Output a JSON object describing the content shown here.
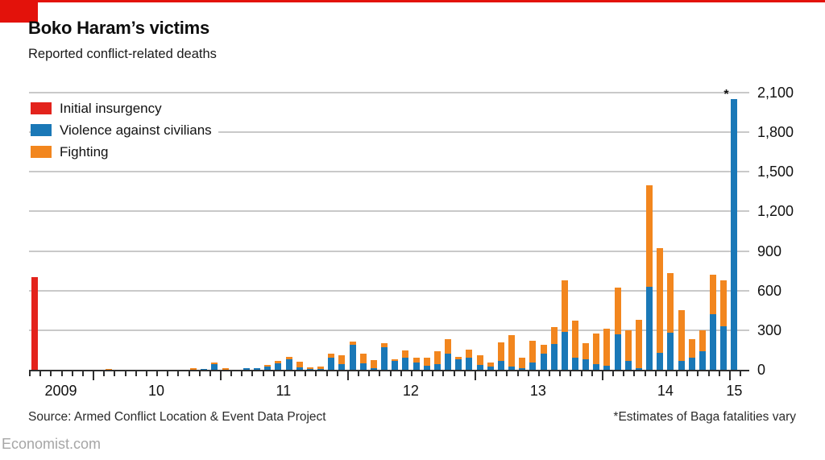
{
  "page": {
    "title": "Boko Haram’s victims",
    "subtitle": "Reported conflict-related deaths",
    "source": "Source: Armed Conflict Location & Event Data Project",
    "footnote": "*Estimates of Baga fatalities vary",
    "site": "Economist.com"
  },
  "colors": {
    "brand_red": "#e3120b",
    "initial": "#e3231c",
    "civilians": "#1a78b7",
    "fighting": "#f2861e",
    "grid": "#c9c9c9",
    "axis": "#2e2e2e"
  },
  "legend": {
    "items": [
      {
        "label": "Initial insurgency",
        "color_key": "initial"
      },
      {
        "label": "Violence against civilians",
        "color_key": "civilians"
      },
      {
        "label": "Fighting",
        "color_key": "fighting"
      }
    ]
  },
  "chart_data": {
    "type": "bar",
    "subtype": "stacked-monthly",
    "title": "Boko Haram’s victims",
    "ylabel": "Reported conflict-related deaths",
    "ylim": [
      0,
      2100
    ],
    "yticks": [
      0,
      300,
      600,
      900,
      1200,
      1500,
      1800,
      2100
    ],
    "ytick_labels": [
      "0",
      "300",
      "600",
      "900",
      "1,200",
      "1,500",
      "1,800",
      "2,100"
    ],
    "x_year_labels": [
      "2009",
      "10",
      "11",
      "12",
      "13",
      "14",
      "15"
    ],
    "legend_position": "top-left",
    "grid": "horizontal",
    "note": {
      "marker": "*",
      "month": "2015-01",
      "text": "*Estimates of Baga fatalities vary"
    },
    "months": [
      "2009-07",
      "2009-08",
      "2009-09",
      "2009-10",
      "2009-11",
      "2009-12",
      "2010-01",
      "2010-02",
      "2010-03",
      "2010-04",
      "2010-05",
      "2010-06",
      "2010-07",
      "2010-08",
      "2010-09",
      "2010-10",
      "2010-11",
      "2010-12",
      "2011-01",
      "2011-02",
      "2011-03",
      "2011-04",
      "2011-05",
      "2011-06",
      "2011-07",
      "2011-08",
      "2011-09",
      "2011-10",
      "2011-11",
      "2011-12",
      "2012-01",
      "2012-02",
      "2012-03",
      "2012-04",
      "2012-05",
      "2012-06",
      "2012-07",
      "2012-08",
      "2012-09",
      "2012-10",
      "2012-11",
      "2012-12",
      "2013-01",
      "2013-02",
      "2013-03",
      "2013-04",
      "2013-05",
      "2013-06",
      "2013-07",
      "2013-08",
      "2013-09",
      "2013-10",
      "2013-11",
      "2013-12",
      "2014-01",
      "2014-02",
      "2014-03",
      "2014-04",
      "2014-05",
      "2014-06",
      "2014-07",
      "2014-08",
      "2014-09",
      "2014-10",
      "2014-11",
      "2014-12",
      "2015-01"
    ],
    "series": [
      {
        "name": "Initial insurgency",
        "values": [
          700,
          0,
          0,
          0,
          0,
          0,
          0,
          0,
          0,
          0,
          0,
          0,
          0,
          0,
          0,
          0,
          0,
          0,
          0,
          0,
          0,
          0,
          0,
          0,
          0,
          0,
          0,
          0,
          0,
          0,
          0,
          0,
          0,
          0,
          0,
          0,
          0,
          0,
          0,
          0,
          0,
          0,
          0,
          0,
          0,
          0,
          0,
          0,
          0,
          0,
          0,
          0,
          0,
          0,
          0,
          0,
          0,
          0,
          0,
          0,
          0,
          0,
          0,
          0,
          0,
          0,
          0
        ]
      },
      {
        "name": "Violence against civilians",
        "values": [
          0,
          0,
          0,
          0,
          0,
          0,
          0,
          0,
          0,
          0,
          0,
          0,
          0,
          0,
          0,
          0,
          5,
          45,
          0,
          0,
          12,
          12,
          25,
          52,
          80,
          20,
          6,
          4,
          90,
          40,
          190,
          50,
          15,
          170,
          70,
          90,
          55,
          30,
          45,
          120,
          80,
          90,
          35,
          25,
          70,
          25,
          10,
          55,
          120,
          195,
          290,
          90,
          80,
          45,
          30,
          270,
          70,
          10,
          630,
          130,
          280,
          65,
          90,
          140,
          420,
          330,
          2050
        ]
      },
      {
        "name": "Fighting",
        "values": [
          0,
          0,
          0,
          0,
          0,
          0,
          0,
          8,
          0,
          0,
          0,
          0,
          0,
          0,
          0,
          10,
          3,
          12,
          12,
          0,
          0,
          3,
          10,
          15,
          15,
          40,
          12,
          18,
          35,
          70,
          25,
          70,
          60,
          30,
          8,
          60,
          35,
          65,
          95,
          110,
          20,
          65,
          75,
          30,
          140,
          240,
          85,
          165,
          70,
          130,
          385,
          280,
          120,
          230,
          280,
          355,
          230,
          370,
          770,
          790,
          450,
          385,
          140,
          160,
          300,
          350,
          0
        ]
      }
    ]
  }
}
